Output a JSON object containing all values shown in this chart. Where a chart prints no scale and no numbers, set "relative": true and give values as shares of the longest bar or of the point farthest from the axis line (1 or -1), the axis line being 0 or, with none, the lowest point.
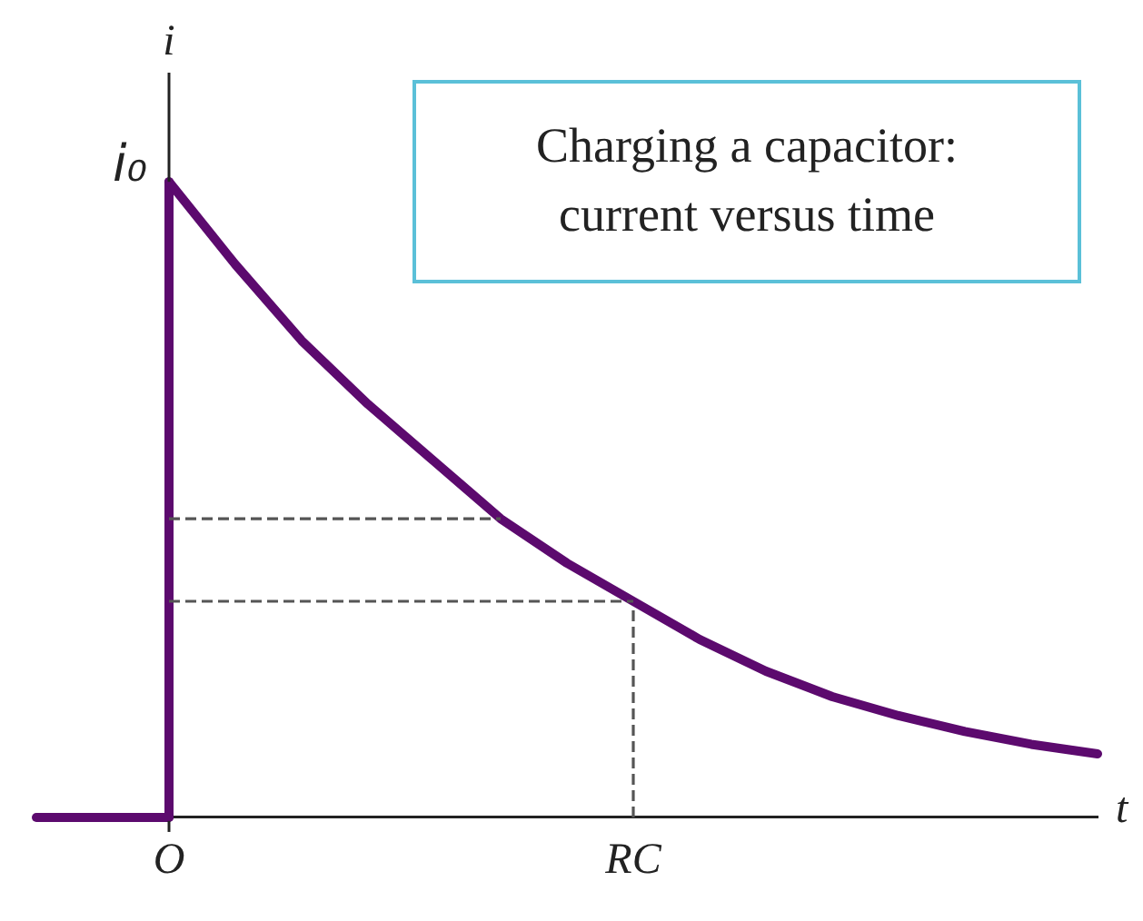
{
  "chart_data": {
    "type": "line",
    "title": "Charging a capacitor: current versus time",
    "xlabel": "t",
    "ylabel": "i",
    "relative": true,
    "marker": "none",
    "annotations": [
      "i₀"
    ],
    "categories": [
      null,
      null,
      "O",
      null,
      null,
      null,
      null,
      null,
      null,
      "RC",
      null,
      null,
      null,
      null,
      null,
      null,
      null
    ],
    "series": [
      {
        "color": "#5c0a6e",
        "values": [
          null,
          null,
          1,
          0.87,
          0.75,
          0.65,
          0.56,
          0.47,
          0.4,
          0.34,
          0.28,
          0.23,
          0.19,
          0.16,
          0.135,
          0.115,
          0.1
        ]
      },
      {
        "color": "#5c0a6e",
        "values": [
          0,
          0,
          0,
          null,
          null,
          null,
          null,
          null,
          null,
          null,
          null,
          null,
          null,
          null,
          null,
          null,
          null
        ]
      },
      {
        "color": "#555555",
        "line_style": "dashed",
        "values": [
          null,
          null,
          0.47,
          0.47,
          0.47,
          0.47,
          0.47,
          0.47,
          null,
          null,
          null,
          null,
          null,
          null,
          null,
          null,
          null
        ]
      },
      {
        "color": "#555555",
        "line_style": "dashed",
        "values": [
          null,
          null,
          0.34,
          0.34,
          0.34,
          0.34,
          0.34,
          0.34,
          0.34,
          0.34,
          null,
          null,
          null,
          null,
          null,
          null,
          null
        ]
      }
    ],
    "ref_lines": [
      {
        "axis": "x",
        "value": "O",
        "color": "#5c0a6e"
      },
      {
        "axis": "x",
        "value": "RC",
        "color": "#555555",
        "line_style": "dashed"
      }
    ]
  }
}
